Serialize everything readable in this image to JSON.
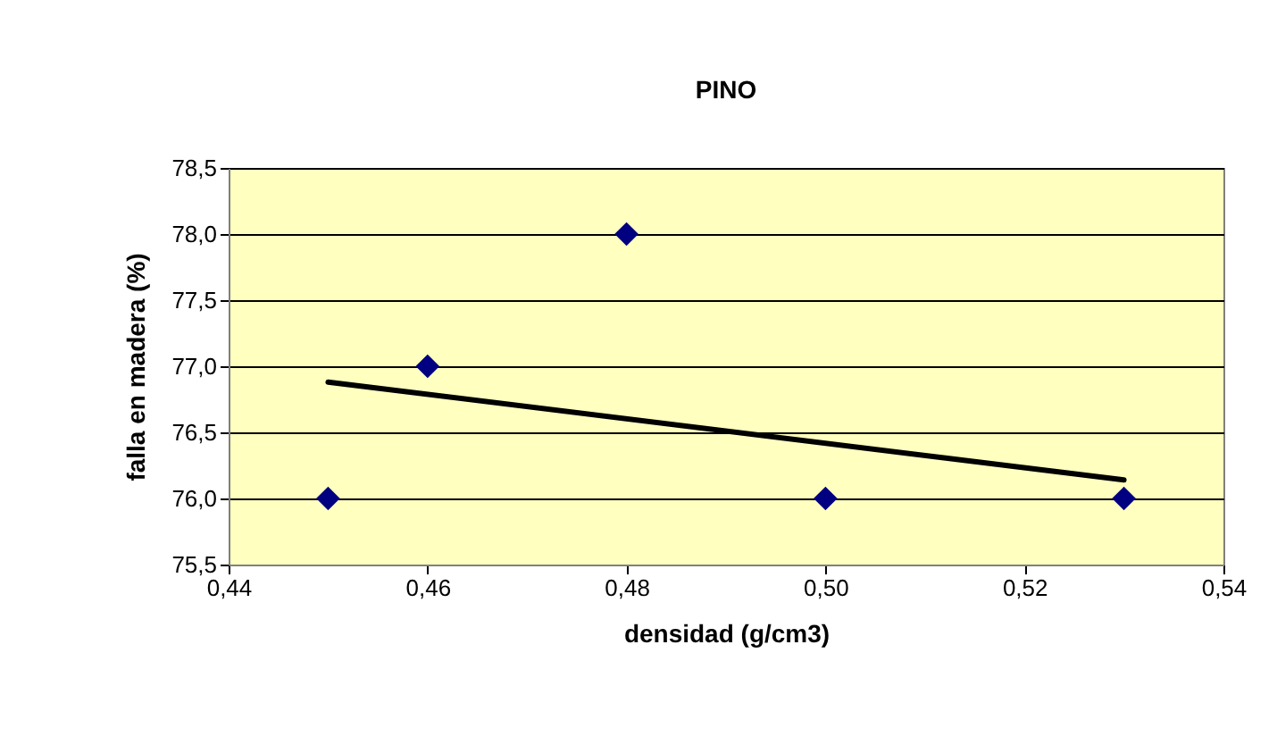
{
  "chart_data": {
    "type": "scatter",
    "title": "PINO",
    "xlabel": "densidad (g/cm3)",
    "ylabel": "falla en madera (%)",
    "series": [
      {
        "color": "#000080",
        "marker": "diamond",
        "x": [
          0.45,
          0.46,
          0.48,
          0.5,
          0.53
        ],
        "values": [
          76,
          77,
          78,
          76,
          76
        ]
      },
      {
        "type": "line",
        "color": "#000000",
        "line_style": "solid",
        "x": [
          0.45,
          0.53
        ],
        "values": [
          76.88,
          76.14
        ]
      }
    ],
    "xlim": [
      0.44,
      0.54
    ],
    "xticks": [
      {
        "value": 0.44,
        "label": "0,44"
      },
      {
        "value": 0.46,
        "label": "0,46"
      },
      {
        "value": 0.48,
        "label": "0,48"
      },
      {
        "value": 0.5,
        "label": "0,50"
      },
      {
        "value": 0.52,
        "label": "0,52"
      },
      {
        "value": 0.54,
        "label": "0,54"
      }
    ],
    "ylim": [
      75.5,
      78.5
    ],
    "yticks": [
      {
        "value": 75.5,
        "label": "75,5"
      },
      {
        "value": 76,
        "label": "76,0"
      },
      {
        "value": 76.5,
        "label": "76,5"
      },
      {
        "value": 77,
        "label": "77,0"
      },
      {
        "value": 77.5,
        "label": "77,5"
      },
      {
        "value": 78,
        "label": "78,0"
      },
      {
        "value": 78.5,
        "label": "78,5"
      }
    ],
    "grid": "y"
  }
}
